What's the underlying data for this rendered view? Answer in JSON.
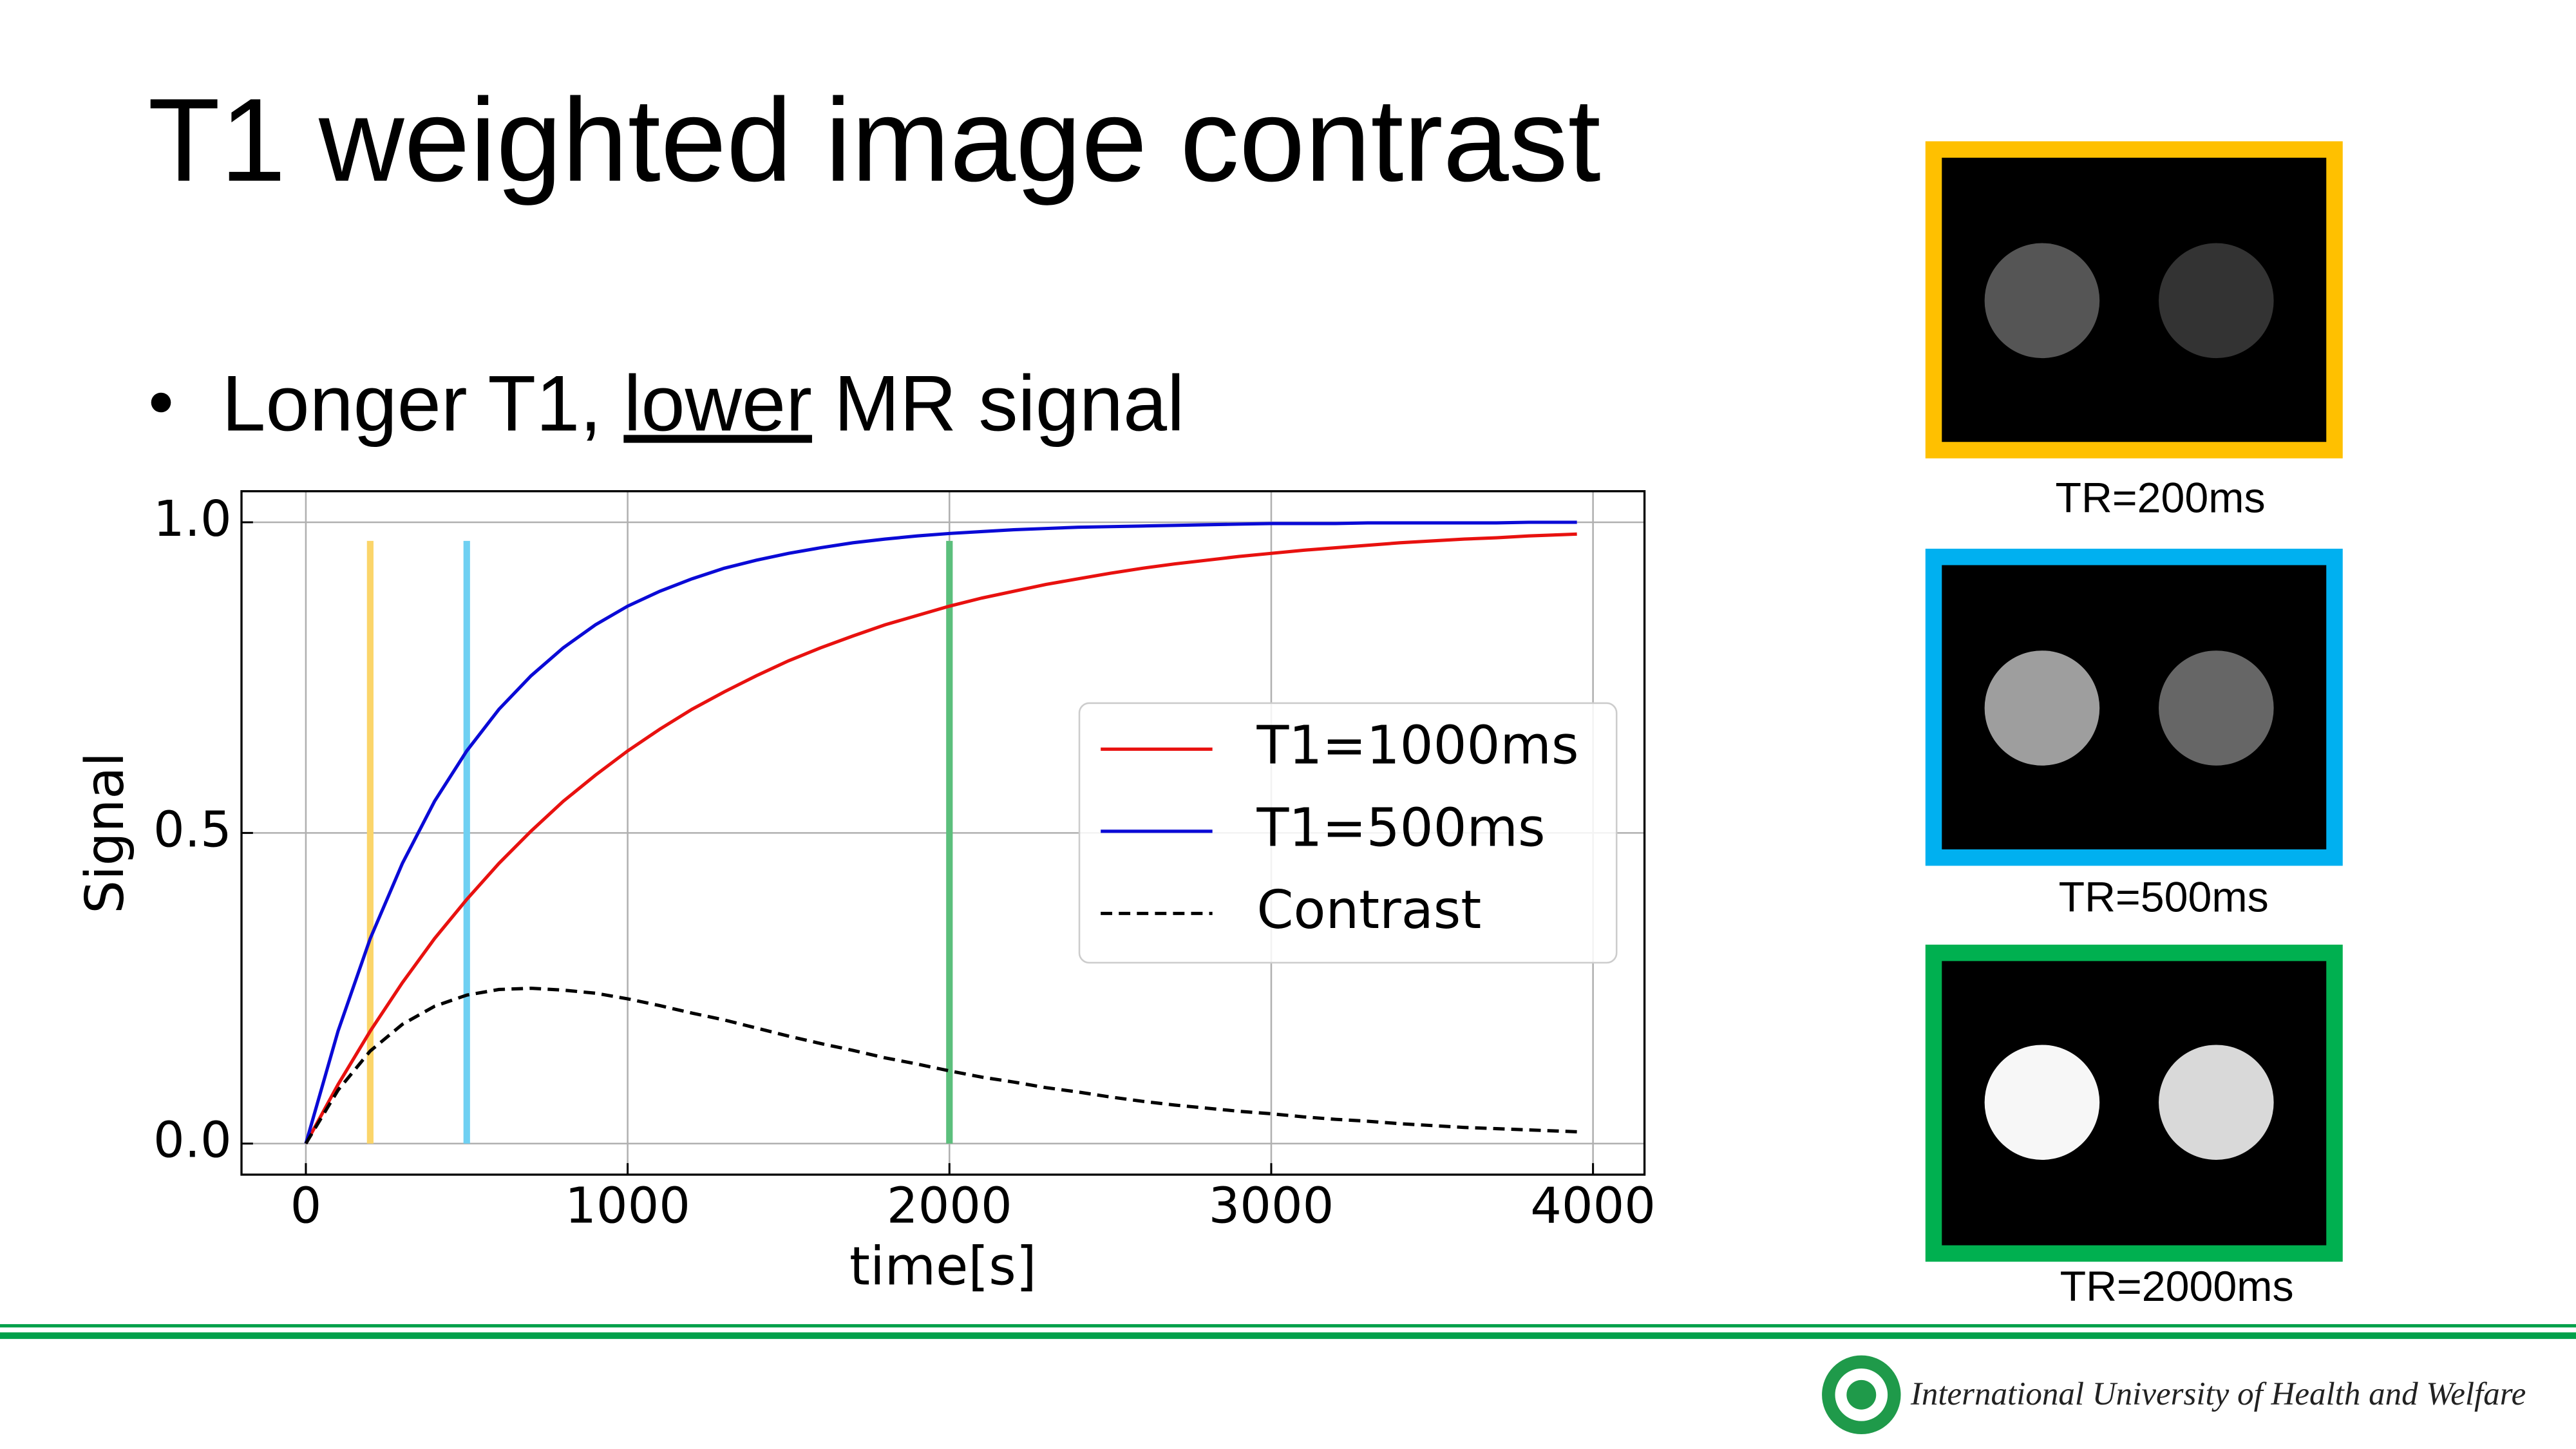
{
  "title": "T1 weighted image contrast",
  "bullet": {
    "parts": [
      "Longer T1, ",
      "lower",
      " MR signal"
    ]
  },
  "chart_data": {
    "type": "line",
    "xlabel": "time[s]",
    "ylabel": "Signal",
    "x": [
      0,
      100,
      200,
      300,
      400,
      500,
      600,
      700,
      800,
      900,
      1000,
      1100,
      1200,
      1300,
      1400,
      1500,
      1600,
      1700,
      1800,
      1900,
      2000,
      2100,
      2200,
      2300,
      2400,
      2500,
      2600,
      2700,
      2800,
      2900,
      3000,
      3100,
      3200,
      3300,
      3400,
      3500,
      3600,
      3700,
      3800,
      3900,
      3950
    ],
    "series": [
      {
        "name": "T1=1000ms",
        "color": "#e8110f",
        "style": "solid",
        "values": [
          0,
          0.095,
          0.181,
          0.259,
          0.33,
          0.393,
          0.451,
          0.503,
          0.551,
          0.593,
          0.632,
          0.667,
          0.699,
          0.727,
          0.753,
          0.777,
          0.798,
          0.817,
          0.835,
          0.85,
          0.865,
          0.878,
          0.889,
          0.9,
          0.909,
          0.918,
          0.926,
          0.933,
          0.939,
          0.945,
          0.95,
          0.955,
          0.959,
          0.963,
          0.967,
          0.97,
          0.973,
          0.975,
          0.978,
          0.98,
          0.981
        ]
      },
      {
        "name": "T1=500ms",
        "color": "#0a0ad6",
        "style": "solid",
        "values": [
          0,
          0.181,
          0.33,
          0.451,
          0.551,
          0.632,
          0.699,
          0.753,
          0.798,
          0.835,
          0.865,
          0.889,
          0.909,
          0.926,
          0.939,
          0.95,
          0.959,
          0.967,
          0.973,
          0.978,
          0.982,
          0.985,
          0.988,
          0.99,
          0.992,
          0.993,
          0.994,
          0.995,
          0.996,
          0.997,
          0.998,
          0.998,
          0.998,
          0.999,
          0.999,
          0.999,
          0.999,
          0.999,
          1.0,
          1.0,
          1.0
        ]
      },
      {
        "name": "Contrast",
        "color": "#000000",
        "style": "dashed",
        "values": [
          0,
          0.086,
          0.149,
          0.192,
          0.221,
          0.239,
          0.248,
          0.25,
          0.247,
          0.242,
          0.233,
          0.222,
          0.21,
          0.199,
          0.186,
          0.173,
          0.161,
          0.15,
          0.138,
          0.128,
          0.117,
          0.107,
          0.099,
          0.09,
          0.083,
          0.075,
          0.068,
          0.062,
          0.057,
          0.052,
          0.048,
          0.043,
          0.039,
          0.036,
          0.032,
          0.029,
          0.026,
          0.024,
          0.022,
          0.02,
          0.019
        ]
      }
    ],
    "vertical_lines": [
      {
        "x": 200,
        "ymax": 0.97,
        "color": "#fbd56a"
      },
      {
        "x": 500,
        "ymax": 0.97,
        "color": "#6fd0f2"
      },
      {
        "x": 2000,
        "ymax": 0.97,
        "color": "#5cbf7c"
      }
    ],
    "xlim": [
      -200,
      4160
    ],
    "ylim": [
      -0.05,
      1.05
    ],
    "xticks": [
      0,
      1000,
      2000,
      3000,
      4000
    ],
    "yticks": [
      {
        "value": 0,
        "label": "0.0"
      },
      0.5,
      {
        "value": 1,
        "label": "1.0"
      }
    ],
    "grid": true,
    "legend": "center right"
  },
  "panels": [
    {
      "label": "TR=200ms"
    },
    {
      "label": "TR=500ms"
    },
    {
      "label": "TR=2000ms"
    }
  ],
  "footer": {
    "institution": "International University of Health and Welfare"
  }
}
